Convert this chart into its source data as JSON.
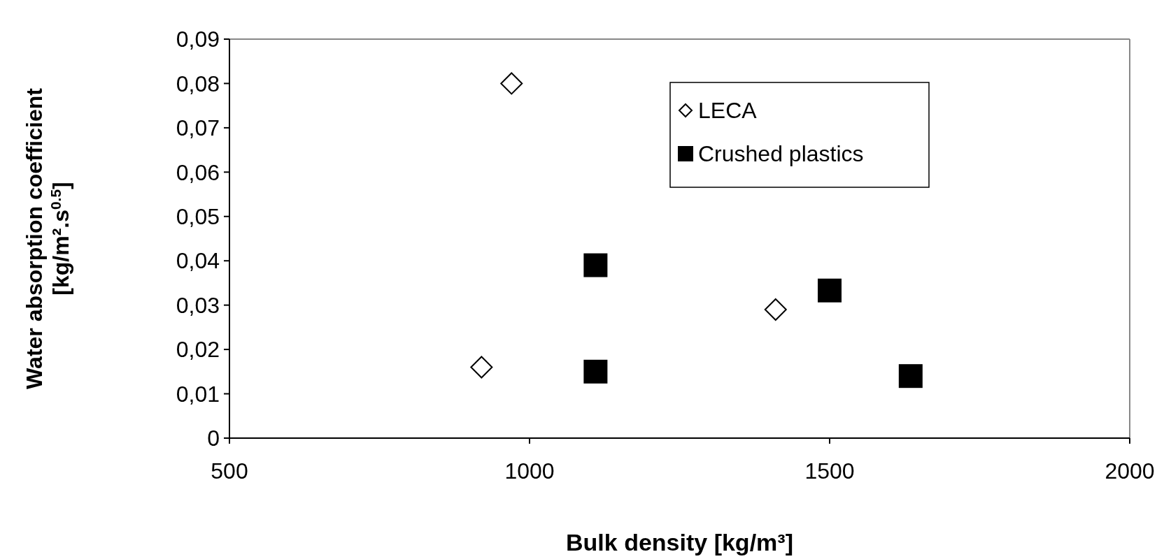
{
  "chart_data": {
    "type": "scatter",
    "xlabel": "Bulk density [kg/m³]",
    "ylabel": "Water absorption coefficient\n[kg/m².s$^{0.5}$]",
    "xlim": [
      500,
      2000
    ],
    "xticks": [
      500,
      1000,
      1500,
      2000
    ],
    "ylim": [
      0,
      0.09
    ],
    "yticks": [
      0,
      {
        "value": 0.01,
        "label": "0,01"
      },
      {
        "value": 0.02,
        "label": "0,02"
      },
      {
        "value": 0.03,
        "label": "0,03"
      },
      {
        "value": 0.04,
        "label": "0,04"
      },
      {
        "value": 0.05,
        "label": "0,05"
      },
      {
        "value": 0.06,
        "label": "0,06"
      },
      {
        "value": 0.07,
        "label": "0,07"
      },
      {
        "value": 0.08,
        "label": "0,08"
      },
      {
        "value": 0.09,
        "label": "0,09"
      }
    ],
    "grid": false,
    "legend": "top right",
    "series": [
      {
        "name": "LECA",
        "color": "#000000",
        "marker": "diamond",
        "x": [
          970,
          920,
          1410
        ],
        "values": [
          0.08,
          0.016,
          0.029
        ]
      },
      {
        "name": "Crushed plastics",
        "color": "#000000",
        "marker": "square",
        "x": [
          1110,
          1110,
          1500,
          1635
        ],
        "values": [
          0.039,
          0.015,
          0.0333,
          0.014
        ]
      }
    ]
  }
}
